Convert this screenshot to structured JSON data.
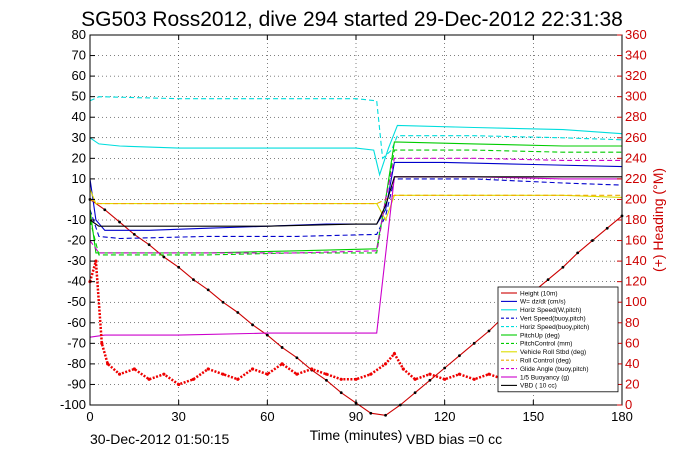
{
  "chart_data": {
    "type": "line",
    "title": "SG503 Ross2012, dive 294 started 29-Dec-2012 22:31:38",
    "xlabel": "Time (minutes)",
    "ylabel_right": "(+) Heading (°M)",
    "footer_left": "30-Dec-2012 01:50:15",
    "footer_right": "VBD bias =0 cc",
    "xlim": [
      0,
      180
    ],
    "ylim": [
      -100,
      80
    ],
    "ylim_right": [
      0,
      360
    ],
    "x_ticks": [
      0,
      30,
      60,
      90,
      120,
      150,
      180
    ],
    "y_ticks": [
      -100,
      -90,
      -80,
      -70,
      -60,
      -50,
      -40,
      -30,
      -20,
      -10,
      0,
      10,
      20,
      30,
      40,
      50,
      60,
      70,
      80
    ],
    "y_right_ticks": [
      0,
      20,
      40,
      60,
      80,
      100,
      120,
      140,
      160,
      180,
      200,
      220,
      240,
      260,
      280,
      300,
      320,
      340,
      360
    ],
    "grid": true,
    "legend_position": "bottom-right",
    "series": [
      {
        "name": "Height (10m)",
        "color": "#cc0000",
        "style": "solid-markers",
        "points": [
          [
            0,
            0
          ],
          [
            5,
            -5
          ],
          [
            10,
            -11
          ],
          [
            15,
            -17
          ],
          [
            20,
            -22
          ],
          [
            25,
            -28
          ],
          [
            30,
            -33
          ],
          [
            35,
            -39
          ],
          [
            40,
            -44
          ],
          [
            45,
            -50
          ],
          [
            50,
            -55
          ],
          [
            55,
            -61
          ],
          [
            60,
            -66
          ],
          [
            65,
            -72
          ],
          [
            70,
            -77
          ],
          [
            75,
            -83
          ],
          [
            80,
            -88
          ],
          [
            85,
            -94
          ],
          [
            90,
            -99
          ],
          [
            95,
            -104
          ],
          [
            100,
            -105
          ],
          [
            105,
            -100
          ],
          [
            110,
            -94
          ],
          [
            115,
            -88
          ],
          [
            120,
            -82
          ],
          [
            125,
            -76
          ],
          [
            130,
            -70
          ],
          [
            135,
            -64
          ],
          [
            140,
            -57
          ],
          [
            145,
            -51
          ],
          [
            150,
            -45
          ],
          [
            155,
            -39
          ],
          [
            160,
            -33
          ],
          [
            165,
            -26
          ],
          [
            170,
            -20
          ],
          [
            175,
            -14
          ],
          [
            180,
            -8
          ]
        ]
      },
      {
        "name": "W= dz/dt (cm/s)",
        "color": "#0000cc",
        "style": "solid",
        "points": [
          [
            0,
            10
          ],
          [
            2,
            -10
          ],
          [
            5,
            -15
          ],
          [
            20,
            -15
          ],
          [
            40,
            -14
          ],
          [
            60,
            -13
          ],
          [
            80,
            -12
          ],
          [
            97,
            -12
          ],
          [
            100,
            -5
          ],
          [
            103,
            18
          ],
          [
            120,
            18
          ],
          [
            150,
            17
          ],
          [
            180,
            16
          ]
        ]
      },
      {
        "name": "Horiz Speed(W,pitch)",
        "color": "#00dddd",
        "style": "solid",
        "points": [
          [
            0,
            30
          ],
          [
            3,
            27
          ],
          [
            10,
            26
          ],
          [
            30,
            25
          ],
          [
            60,
            25
          ],
          [
            90,
            25
          ],
          [
            96,
            24
          ],
          [
            98,
            12
          ],
          [
            101,
            25
          ],
          [
            104,
            36
          ],
          [
            130,
            35
          ],
          [
            160,
            34
          ],
          [
            180,
            32
          ]
        ]
      },
      {
        "name": "Vert Speed(buoy,pitch)",
        "color": "#0000cc",
        "style": "dashed",
        "points": [
          [
            0,
            -5
          ],
          [
            3,
            -18
          ],
          [
            10,
            -19
          ],
          [
            40,
            -18
          ],
          [
            70,
            -18
          ],
          [
            97,
            -17
          ],
          [
            100,
            -8
          ],
          [
            103,
            10
          ],
          [
            130,
            10
          ],
          [
            160,
            8
          ],
          [
            180,
            7
          ]
        ]
      },
      {
        "name": "Horiz Speed(buoy,pitch)",
        "color": "#00dddd",
        "style": "dashed",
        "points": [
          [
            0,
            48
          ],
          [
            3,
            50
          ],
          [
            30,
            49
          ],
          [
            60,
            49
          ],
          [
            90,
            49
          ],
          [
            97,
            48
          ],
          [
            99,
            20
          ],
          [
            102,
            24
          ],
          [
            104,
            31
          ],
          [
            130,
            31
          ],
          [
            160,
            30
          ],
          [
            180,
            29
          ]
        ]
      },
      {
        "name": "PitchUp (deg)",
        "color": "#00cc00",
        "style": "solid",
        "points": [
          [
            0,
            -5
          ],
          [
            2,
            -26
          ],
          [
            10,
            -26
          ],
          [
            40,
            -26
          ],
          [
            70,
            -25
          ],
          [
            97,
            -24
          ],
          [
            100,
            0
          ],
          [
            103,
            28
          ],
          [
            130,
            27
          ],
          [
            160,
            26
          ],
          [
            180,
            26
          ]
        ]
      },
      {
        "name": "PitchControl (mm)",
        "color": "#00cc00",
        "style": "dashed",
        "points": [
          [
            0,
            -10
          ],
          [
            3,
            -27
          ],
          [
            40,
            -27
          ],
          [
            70,
            -26
          ],
          [
            97,
            -26
          ],
          [
            100,
            0
          ],
          [
            103,
            24
          ],
          [
            130,
            24
          ],
          [
            160,
            23
          ],
          [
            180,
            23
          ]
        ]
      },
      {
        "name": "Vehicle Roll Stbd (deg)",
        "color": "#dddd00",
        "style": "solid",
        "points": [
          [
            0,
            5
          ],
          [
            2,
            -2
          ],
          [
            10,
            -2
          ],
          [
            40,
            -2
          ],
          [
            70,
            -2
          ],
          [
            97,
            -2
          ],
          [
            100,
            -10
          ],
          [
            103,
            2
          ],
          [
            130,
            2
          ],
          [
            160,
            2
          ],
          [
            180,
            1
          ]
        ]
      },
      {
        "name": "Roll Control (deg)",
        "color": "#eeaa00",
        "style": "dashed",
        "points": [
          [
            0,
            0
          ],
          [
            3,
            -2
          ],
          [
            50,
            -2
          ],
          [
            97,
            -2
          ],
          [
            103,
            2
          ],
          [
            180,
            2
          ]
        ]
      },
      {
        "name": "Glide Angle (buoy,pitch)",
        "color": "#cc00cc",
        "style": "dashed",
        "points": [
          [
            0,
            -20
          ],
          [
            3,
            -26
          ],
          [
            10,
            -26
          ],
          [
            40,
            -26
          ],
          [
            70,
            -26
          ],
          [
            97,
            -25
          ],
          [
            100,
            0
          ],
          [
            103,
            20
          ],
          [
            130,
            20
          ],
          [
            160,
            19
          ],
          [
            180,
            19
          ]
        ]
      },
      {
        "name": "1/5 Buoyancy (g)",
        "color": "#cc00cc",
        "style": "solid",
        "points": [
          [
            0,
            -67
          ],
          [
            5,
            -66
          ],
          [
            30,
            -66
          ],
          [
            60,
            -65
          ],
          [
            90,
            -65
          ],
          [
            97,
            -65
          ],
          [
            103,
            11
          ],
          [
            130,
            11
          ],
          [
            160,
            10
          ],
          [
            180,
            10
          ]
        ]
      },
      {
        "name": "VBD ( 10 cc)",
        "color": "#000000",
        "style": "solid",
        "points": [
          [
            0,
            -10
          ],
          [
            3,
            -13
          ],
          [
            30,
            -13
          ],
          [
            60,
            -13
          ],
          [
            90,
            -12
          ],
          [
            97,
            -12
          ],
          [
            100,
            -3
          ],
          [
            103,
            11
          ],
          [
            130,
            11
          ],
          [
            180,
            11
          ]
        ]
      },
      {
        "name": "Heading (°M)",
        "color": "#ee0000",
        "style": "markers",
        "axis": "right",
        "points": [
          [
            0,
            120
          ],
          [
            2,
            140
          ],
          [
            4,
            60
          ],
          [
            6,
            40
          ],
          [
            10,
            30
          ],
          [
            15,
            35
          ],
          [
            20,
            25
          ],
          [
            25,
            30
          ],
          [
            30,
            20
          ],
          [
            35,
            25
          ],
          [
            40,
            35
          ],
          [
            45,
            30
          ],
          [
            50,
            25
          ],
          [
            55,
            35
          ],
          [
            60,
            30
          ],
          [
            65,
            40
          ],
          [
            70,
            30
          ],
          [
            75,
            35
          ],
          [
            80,
            30
          ],
          [
            85,
            25
          ],
          [
            90,
            25
          ],
          [
            95,
            30
          ],
          [
            100,
            40
          ],
          [
            103,
            50
          ],
          [
            106,
            35
          ],
          [
            110,
            25
          ],
          [
            115,
            30
          ],
          [
            120,
            25
          ],
          [
            125,
            30
          ],
          [
            130,
            25
          ],
          [
            135,
            30
          ],
          [
            140,
            25
          ]
        ]
      }
    ]
  }
}
